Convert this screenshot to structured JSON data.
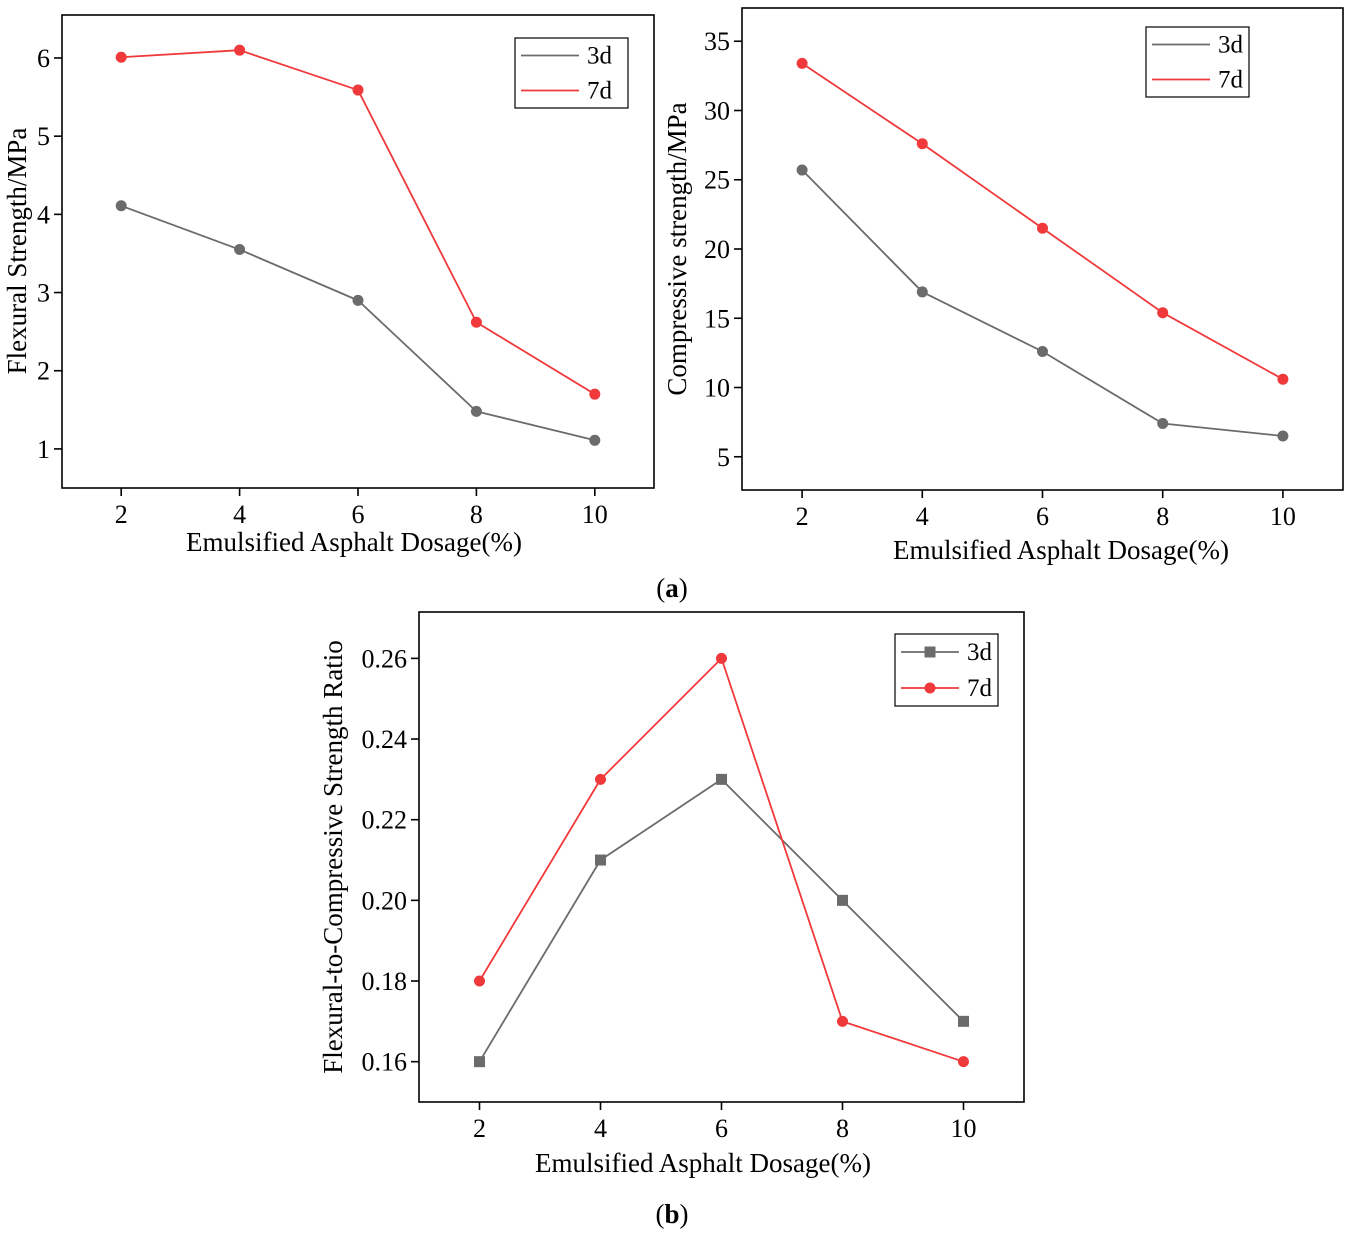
{
  "colors": {
    "series_3d": "#6b6b6b",
    "series_7d": "#f0393b",
    "axis": "#000000"
  },
  "captions": {
    "a": {
      "open": "(",
      "letter": "a",
      "close": ")"
    },
    "b": {
      "open": "(",
      "letter": "b",
      "close": ")"
    }
  },
  "chart_data": [
    {
      "id": "flexural",
      "panel": "a",
      "type": "line",
      "title": "",
      "xlabel": "Emulsified Asphalt Dosage(%)",
      "ylabel": "Flexural Strength/MPa",
      "x": [
        2,
        4,
        6,
        8,
        10
      ],
      "xticks": [
        "2",
        "4",
        "6",
        "8",
        "10"
      ],
      "yticks": [
        "1",
        "2",
        "3",
        "4",
        "5",
        "6"
      ],
      "xlim": [
        1,
        11
      ],
      "ylim": [
        0.5,
        6.55
      ],
      "grid": false,
      "legend_position": "top-right",
      "series": [
        {
          "name": "3d",
          "marker": "circle",
          "color": "#6b6b6b",
          "values": [
            4.11,
            3.55,
            2.9,
            1.48,
            1.11
          ]
        },
        {
          "name": "7d",
          "marker": "circle",
          "color": "#f0393b",
          "values": [
            6.01,
            6.1,
            5.59,
            2.62,
            1.7
          ]
        }
      ]
    },
    {
      "id": "compressive",
      "panel": "a",
      "type": "line",
      "title": "",
      "xlabel": "Emulsified Asphalt Dosage(%)",
      "ylabel": "Compressive strength/MPa",
      "x": [
        2,
        4,
        6,
        8,
        10
      ],
      "xticks": [
        "2",
        "4",
        "6",
        "8",
        "10"
      ],
      "yticks": [
        "5",
        "10",
        "15",
        "20",
        "25",
        "30",
        "35"
      ],
      "xlim": [
        1,
        11
      ],
      "ylim": [
        2.6,
        37.4
      ],
      "grid": false,
      "legend_position": "top-right",
      "series": [
        {
          "name": "3d",
          "marker": "circle",
          "color": "#6b6b6b",
          "values": [
            25.7,
            16.9,
            12.6,
            7.4,
            6.5
          ]
        },
        {
          "name": "7d",
          "marker": "circle",
          "color": "#f0393b",
          "values": [
            33.4,
            27.6,
            21.5,
            15.4,
            10.6
          ]
        }
      ]
    },
    {
      "id": "ratio",
      "panel": "b",
      "type": "line",
      "title": "",
      "xlabel": "Emulsified Asphalt Dosage(%)",
      "ylabel": "Flexural-to-Compressive Strength Ratio",
      "x": [
        2,
        4,
        6,
        8,
        10
      ],
      "xticks": [
        "2",
        "4",
        "6",
        "8",
        "10"
      ],
      "yticks": [
        "0.16",
        "0.18",
        "0.20",
        "0.22",
        "0.24",
        "0.26"
      ],
      "xlim": [
        1,
        11
      ],
      "ylim": [
        0.15,
        0.2715
      ],
      "grid": false,
      "legend_position": "top-right",
      "series": [
        {
          "name": "3d",
          "marker": "square",
          "color": "#6b6b6b",
          "values": [
            0.16,
            0.21,
            0.23,
            0.2,
            0.17
          ]
        },
        {
          "name": "7d",
          "marker": "circle",
          "color": "#f0393b",
          "values": [
            0.18,
            0.23,
            0.26,
            0.17,
            0.16
          ]
        }
      ]
    }
  ]
}
